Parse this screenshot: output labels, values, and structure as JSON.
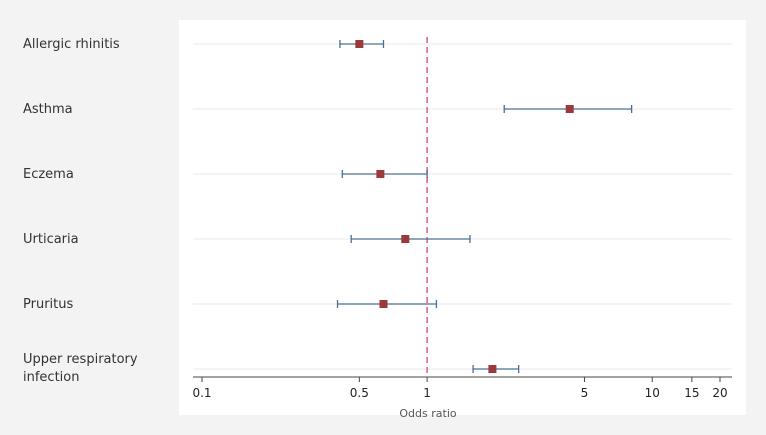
{
  "chart_data": {
    "type": "forest",
    "xlabel": "Odds ratio",
    "x_scale": "log",
    "xlim": [
      0.1,
      22
    ],
    "ticks": [
      0.1,
      0.5,
      1,
      5,
      10,
      15,
      20
    ],
    "tick_labels": [
      "0.1",
      "0.5",
      "1",
      "5",
      "10",
      "15",
      "20"
    ],
    "reference_line": 1,
    "grid": true,
    "rows": [
      {
        "label": "Allergic rhinitis",
        "or": 0.5,
        "lo": 0.41,
        "hi": 0.64
      },
      {
        "label": "Asthma",
        "or": 4.3,
        "lo": 2.2,
        "hi": 8.1
      },
      {
        "label": "Eczema",
        "or": 0.62,
        "lo": 0.42,
        "hi": 1.0
      },
      {
        "label": "Urticaria",
        "or": 0.8,
        "lo": 0.46,
        "hi": 1.55
      },
      {
        "label": "Pruritus",
        "or": 0.64,
        "lo": 0.4,
        "hi": 1.1
      },
      {
        "label_lines": [
          "Upper respiratory",
          "infection"
        ],
        "or": 1.95,
        "lo": 1.6,
        "hi": 2.55
      }
    ],
    "colors": {
      "marker": "#9b3a3a",
      "ci": "#4a6f93",
      "reference": "#e0668a",
      "grid": "#e4e8ee",
      "axis": "#444444"
    }
  }
}
